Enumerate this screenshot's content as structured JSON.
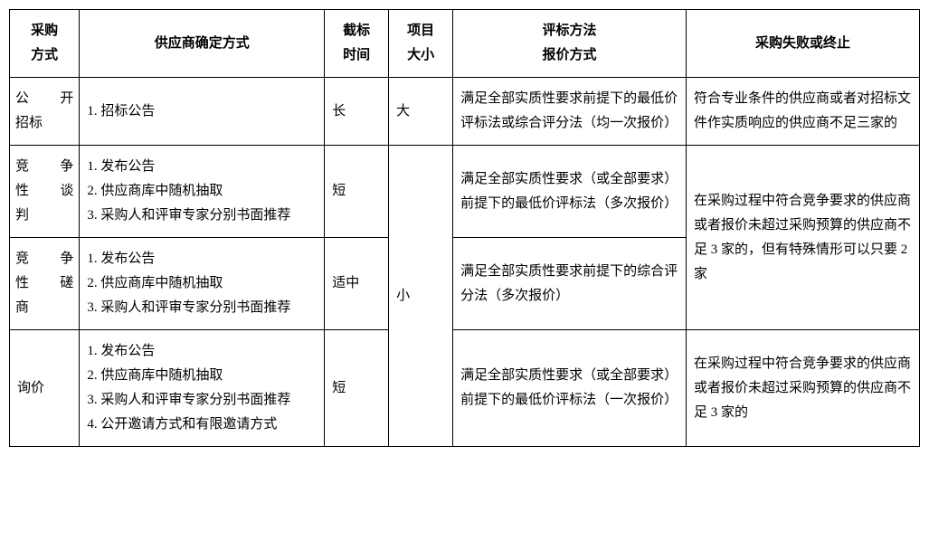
{
  "headers": {
    "method": "采购\n方式",
    "supplier": "供应商确定方式",
    "deadline": "截标\n时间",
    "size": "项目\n大小",
    "eval": "评标方法\n报价方式",
    "fail": "采购失败或终止"
  },
  "rows": {
    "r1": {
      "method_l1_c1": "公",
      "method_l1_c2": "开",
      "method_l2": "招标",
      "supplier": "1. 招标公告",
      "deadline": "长",
      "size": "大",
      "eval": "满足全部实质性要求前提下的最低价评标法或综合评分法（均一次报价）",
      "fail": "符合专业条件的供应商或者对招标文件作实质响应的供应商不足三家的"
    },
    "r2": {
      "method_l1_c1": "竞",
      "method_l1_c2": "争",
      "method_l2_c1": "性",
      "method_l2_c2": "谈",
      "method_l3": "判",
      "supplier": "1. 发布公告\n2. 供应商库中随机抽取\n3. 采购人和评审专家分别书面推荐",
      "deadline": "短",
      "eval": "满足全部实质性要求（或全部要求）前提下的最低价评标法（多次报价）"
    },
    "r3": {
      "method_l1_c1": "竞",
      "method_l1_c2": "争",
      "method_l2_c1": "性",
      "method_l2_c2": "磋",
      "method_l3": "商",
      "supplier": "1. 发布公告\n2. 供应商库中随机抽取\n3. 采购人和评审专家分别书面推荐",
      "deadline": "适中",
      "size_span": "小",
      "eval": "满足全部实质性要求前提下的综合评分法（多次报价）",
      "fail_span": "在采购过程中符合竞争要求的供应商或者报价未超过采购预算的供应商不足 3 家的，但有特殊情形可以只要 2 家"
    },
    "r4": {
      "method": "询价",
      "supplier": "1. 发布公告\n2. 供应商库中随机抽取\n3. 采购人和评审专家分别书面推荐\n4. 公开邀请方式和有限邀请方式",
      "deadline": "短",
      "eval": "满足全部实质性要求（或全部要求）前提下的最低价评标法（一次报价）",
      "fail": "在采购过程中符合竞争要求的供应商或者报价未超过采购预算的供应商不足 3 家的"
    }
  }
}
